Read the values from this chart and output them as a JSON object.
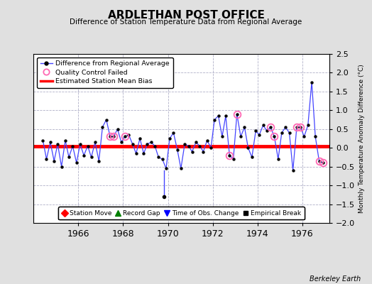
{
  "title": "ARDLETHAN POST OFFICE",
  "subtitle": "Difference of Station Temperature Data from Regional Average",
  "ylabel": "Monthly Temperature Anomaly Difference (°C)",
  "xlabel_ticks": [
    1966,
    1968,
    1970,
    1972,
    1974,
    1976
  ],
  "ylim": [
    -2.0,
    2.5
  ],
  "yticks": [
    -2,
    -1.5,
    -1,
    -0.5,
    0,
    0.5,
    1,
    1.5,
    2,
    2.5
  ],
  "mean_bias": 0.05,
  "line_color": "#4444ff",
  "bias_color": "red",
  "qc_color": "#ff69b4",
  "background_color": "#e0e0e0",
  "plot_bg_color": "#ffffff",
  "grid_color": "#b0b0c8",
  "marker_color": "black",
  "time_obs_change_x": 1969.83,
  "time_obs_change_y_top": -0.6,
  "time_obs_change_y_bot": -1.3,
  "berkeley_earth_label": "Berkeley Earth",
  "years": [
    1964.42,
    1964.58,
    1964.75,
    1964.92,
    1965.08,
    1965.25,
    1965.42,
    1965.58,
    1965.75,
    1965.92,
    1966.08,
    1966.25,
    1966.42,
    1966.58,
    1966.75,
    1966.92,
    1967.08,
    1967.25,
    1967.42,
    1967.58,
    1967.75,
    1967.92,
    1968.08,
    1968.25,
    1968.42,
    1968.58,
    1968.75,
    1968.92,
    1969.08,
    1969.25,
    1969.42,
    1969.58,
    1969.75,
    1969.92,
    1970.08,
    1970.25,
    1970.42,
    1970.58,
    1970.75,
    1970.92,
    1971.08,
    1971.25,
    1971.42,
    1971.58,
    1971.75,
    1971.92,
    1972.08,
    1972.25,
    1972.42,
    1972.58,
    1972.75,
    1972.92,
    1973.08,
    1973.25,
    1973.42,
    1973.58,
    1973.75,
    1973.92,
    1974.08,
    1974.25,
    1974.42,
    1974.58,
    1974.75,
    1974.92,
    1975.08,
    1975.25,
    1975.42,
    1975.58,
    1975.75,
    1975.92,
    1976.08,
    1976.25,
    1976.42,
    1976.58,
    1976.75,
    1976.92
  ],
  "values": [
    0.2,
    -0.3,
    0.15,
    -0.35,
    0.1,
    -0.5,
    0.2,
    -0.25,
    0.05,
    -0.4,
    0.1,
    -0.2,
    0.05,
    -0.25,
    0.15,
    -0.35,
    0.55,
    0.75,
    0.3,
    0.3,
    0.5,
    0.15,
    0.3,
    0.35,
    0.1,
    -0.15,
    0.25,
    -0.15,
    0.1,
    0.15,
    0.05,
    -0.25,
    -0.3,
    -0.55,
    0.25,
    0.4,
    -0.05,
    -0.55,
    0.1,
    0.05,
    -0.1,
    0.15,
    0.05,
    -0.1,
    0.2,
    0.0,
    0.75,
    0.85,
    0.3,
    0.85,
    -0.2,
    -0.3,
    0.9,
    0.3,
    0.55,
    0.0,
    -0.25,
    0.45,
    0.35,
    0.6,
    0.45,
    0.55,
    0.3,
    -0.3,
    0.4,
    0.55,
    0.4,
    -0.6,
    0.55,
    0.55,
    0.3,
    0.6,
    1.75,
    0.3,
    -0.35,
    -0.4
  ],
  "qc_failed_x": [
    1967.42,
    1967.58,
    1968.08,
    1972.75,
    1973.08,
    1974.58,
    1974.75,
    1975.75,
    1975.92,
    1976.75,
    1976.92
  ],
  "qc_failed_y": [
    0.3,
    0.3,
    0.3,
    -0.2,
    0.9,
    0.55,
    0.3,
    0.55,
    0.55,
    -0.35,
    -0.4
  ]
}
